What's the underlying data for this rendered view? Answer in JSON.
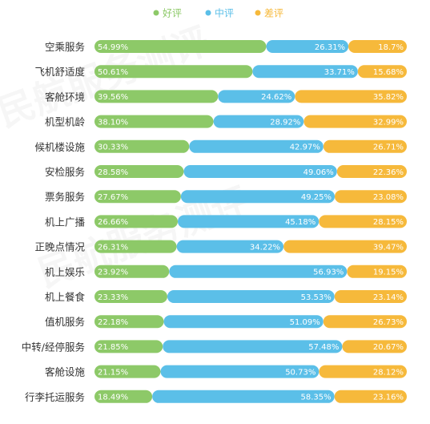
{
  "legend": [
    {
      "name": "好评",
      "color": "#8dc968"
    },
    {
      "name": "中评",
      "color": "#5bbfe8"
    },
    {
      "name": "差评",
      "color": "#f6b93b"
    }
  ],
  "chart_data": {
    "type": "bar",
    "stacked": true,
    "orientation": "horizontal",
    "value_format": "percent",
    "categories": [
      "空乘服务",
      "飞机舒适度",
      "客舱环境",
      "机型机龄",
      "候机楼设施",
      "安检服务",
      "票务服务",
      "机上广播",
      "正晚点情况",
      "机上娱乐",
      "机上餐食",
      "值机服务",
      "中转/经停服务",
      "客舱设施",
      "行李托运服务"
    ],
    "series": [
      {
        "name": "好评",
        "color": "#8dc968",
        "values": [
          54.99,
          50.61,
          39.56,
          38.1,
          30.33,
          28.58,
          27.67,
          26.66,
          26.31,
          23.92,
          23.33,
          22.18,
          21.85,
          21.15,
          18.49
        ]
      },
      {
        "name": "中评",
        "color": "#5bbfe8",
        "values": [
          26.31,
          33.71,
          24.62,
          28.92,
          42.97,
          49.06,
          49.25,
          45.18,
          34.22,
          56.93,
          53.53,
          51.09,
          57.48,
          50.73,
          58.35
        ]
      },
      {
        "name": "差评",
        "color": "#f6b93b",
        "values": [
          18.7,
          15.68,
          35.82,
          32.99,
          26.71,
          22.36,
          23.08,
          28.15,
          39.47,
          19.15,
          23.14,
          26.73,
          20.67,
          28.12,
          23.16
        ]
      }
    ],
    "labels": [
      [
        "54.99%",
        "26.31%",
        "18.7%"
      ],
      [
        "50.61%",
        "33.71%",
        "15.68%"
      ],
      [
        "39.56%",
        "24.62%",
        "35.82%"
      ],
      [
        "38.10%",
        "28.92%",
        "32.99%"
      ],
      [
        "30.33%",
        "42.97%",
        "26.71%"
      ],
      [
        "28.58%",
        "49.06%",
        "22.36%"
      ],
      [
        "27.67%",
        "49.25%",
        "23.08%"
      ],
      [
        "26.66%",
        "45.18%",
        "28.15%"
      ],
      [
        "26.31%",
        "34.22%",
        "39.47%"
      ],
      [
        "23.92%",
        "56.93%",
        "19.15%"
      ],
      [
        "23.33%",
        "53.53%",
        "23.14%"
      ],
      [
        "22.18%",
        "51.09%",
        "26.73%"
      ],
      [
        "21.85%",
        "57.48%",
        "20.67%"
      ],
      [
        "21.15%",
        "50.73%",
        "28.12%"
      ],
      [
        "18.49%",
        "58.35%",
        "23.16%"
      ]
    ],
    "legend_position": "top-center",
    "grid": false
  }
}
